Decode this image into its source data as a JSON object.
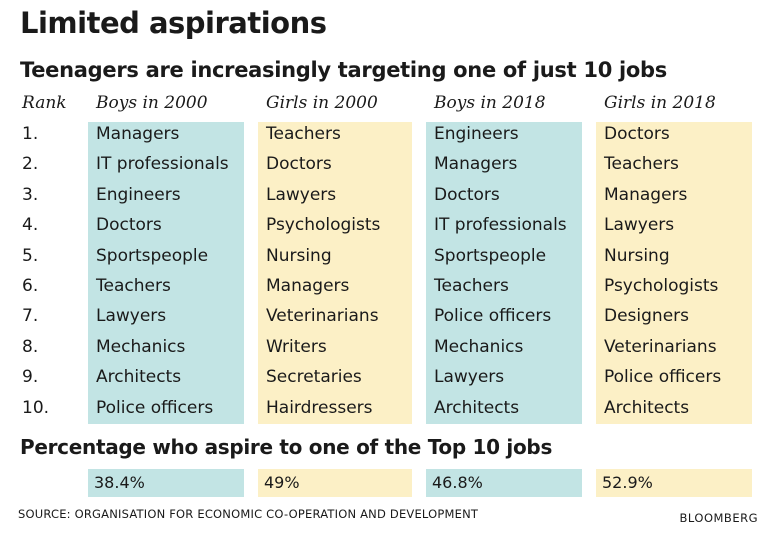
{
  "header": {
    "title": "Limited aspirations",
    "subtitle": "Teenagers are increasingly targeting one of just 10 jobs"
  },
  "colors": {
    "boys": "#c2e4e4",
    "girls": "#fcf0c6"
  },
  "chart_data": {
    "type": "table",
    "rank_header": "Rank",
    "ranks": [
      "1.",
      "2.",
      "3.",
      "4.",
      "5.",
      "6.",
      "7.",
      "8.",
      "9.",
      "10."
    ],
    "columns": [
      {
        "header": "Boys in 2000",
        "jobs": [
          "Managers",
          "IT professionals",
          "Engineers",
          "Doctors",
          "Sportspeople",
          "Teachers",
          "Lawyers",
          "Mechanics",
          "Architects",
          "Police officers"
        ],
        "percentage": "38.4%"
      },
      {
        "header": "Girls in 2000",
        "jobs": [
          "Teachers",
          "Doctors",
          "Lawyers",
          "Psychologists",
          "Nursing",
          "Managers",
          "Veterinarians",
          "Writers",
          "Secretaries",
          "Hairdressers"
        ],
        "percentage": "49%"
      },
      {
        "header": "Boys in 2018",
        "jobs": [
          "Engineers",
          "Managers",
          "Doctors",
          "IT professionals",
          "Sportspeople",
          "Teachers",
          "Police officers",
          "Mechanics",
          "Lawyers",
          "Architects"
        ],
        "percentage": "46.8%"
      },
      {
        "header": "Girls in 2018",
        "jobs": [
          "Doctors",
          "Teachers",
          "Managers",
          "Lawyers",
          "Nursing",
          "Psychologists",
          "Designers",
          "Veterinarians",
          "Police officers",
          "Architects"
        ],
        "percentage": "52.9%"
      }
    ],
    "percentage_heading": "Percentage who aspire to one of the Top 10 jobs"
  },
  "footer": {
    "source": "SOURCE: ORGANISATION FOR ECONOMIC CO-OPERATION AND DEVELOPMENT",
    "brand": "BLOOMBERG"
  }
}
